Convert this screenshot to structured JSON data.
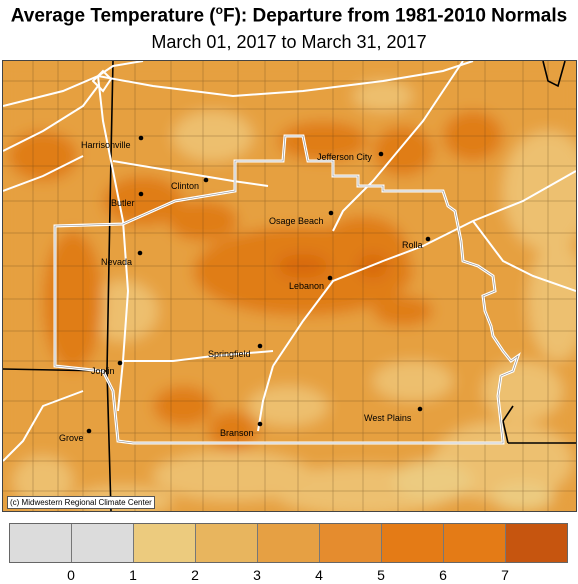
{
  "title": {
    "prefix": "Average Temperature (",
    "degree": "o",
    "suffix": "F): Departure from 1981-2010 Normals"
  },
  "subtitle": "March 01, 2017 to March 31, 2017",
  "credit": "(c) Midwestern Regional Climate Center",
  "cities": [
    {
      "name": "Harrisonville"
    },
    {
      "name": "Jefferson City"
    },
    {
      "name": "Clinton"
    },
    {
      "name": "Butler"
    },
    {
      "name": "Osage Beach"
    },
    {
      "name": "Rolla"
    },
    {
      "name": "Nevada"
    },
    {
      "name": "Lebanon"
    },
    {
      "name": "Springfield"
    },
    {
      "name": "Joplin"
    },
    {
      "name": "West Plains"
    },
    {
      "name": "Branson"
    },
    {
      "name": "Grove"
    }
  ],
  "legend": {
    "labels": [
      "0",
      "1",
      "2",
      "3",
      "4",
      "5",
      "6",
      "7"
    ],
    "colors": [
      "#dcdcdc",
      "#dcdcdc",
      "#eccb7e",
      "#e8b55e",
      "#e6a043",
      "#e58c2e",
      "#e47b16",
      "#c6550f"
    ]
  },
  "colors": {
    "base_fill": "#e6a040",
    "light_fill": "#edc070",
    "pale_fill": "#eccb80",
    "dark_fill": "#e07d18",
    "darkest_fill": "#d8690f"
  }
}
